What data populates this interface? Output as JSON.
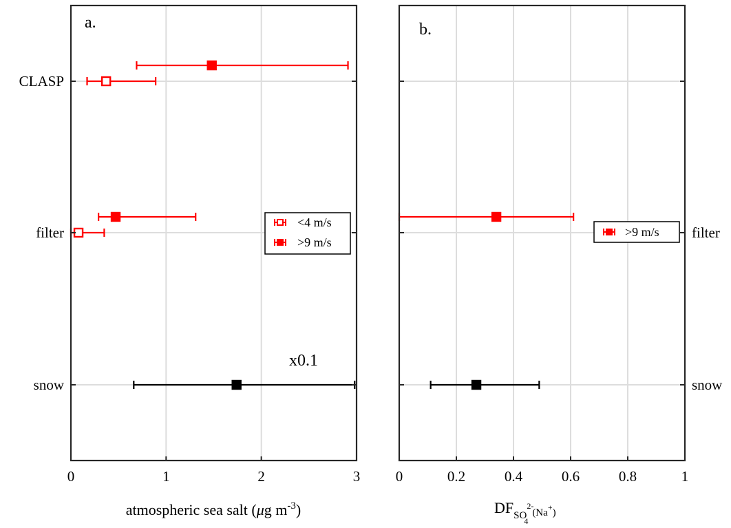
{
  "chart_data": [
    {
      "type": "errorbar",
      "panel_label": "a.",
      "xlabel": "atmospheric sea salt (μg m⁻³)",
      "xlabel_parts": {
        "main": "atmospheric sea salt (",
        "mu": "μ",
        "rest": "g m",
        "sup": "-3",
        "close": ")"
      },
      "xlim": [
        0,
        3
      ],
      "xticks": [
        0,
        1,
        2,
        3
      ],
      "xtick_labels": [
        "0",
        "1",
        "2",
        "3"
      ],
      "categories": [
        "CLASP",
        "filter",
        "snow"
      ],
      "grid": true,
      "annotation": "x0.1",
      "legend": {
        "position": "right-middle",
        "entries": [
          "<4 m/s",
          ">9 m/s"
        ]
      },
      "points": [
        {
          "category": "CLASP",
          "series": ">9 m/s",
          "value": 1.48,
          "low": 0.69,
          "high": 2.91,
          "color": "#ff0000",
          "filled": true
        },
        {
          "category": "CLASP",
          "series": "<4 m/s",
          "value": 0.37,
          "low": 0.17,
          "high": 0.89,
          "color": "#ff0000",
          "filled": false
        },
        {
          "category": "filter",
          "series": ">9 m/s",
          "value": 0.47,
          "low": 0.29,
          "high": 1.31,
          "color": "#ff0000",
          "filled": true
        },
        {
          "category": "filter",
          "series": "<4 m/s",
          "value": 0.08,
          "low": 0.0,
          "high": 0.35,
          "color": "#ff0000",
          "filled": false
        },
        {
          "category": "snow",
          "series": "",
          "value": 1.74,
          "low": 0.66,
          "high": 2.98,
          "color": "#000000",
          "filled": true
        }
      ]
    },
    {
      "type": "errorbar",
      "panel_label": "b.",
      "xlabel": "DF SO₄²⁻(Na⁺)",
      "xlabel_parts": {
        "df": "DF",
        "so": "SO",
        "sub4": "4",
        "sup2": "2-",
        "na": "(Na",
        "plus": "+",
        "close": ")"
      },
      "xlim": [
        0,
        1
      ],
      "xticks": [
        0,
        0.2,
        0.4,
        0.6,
        0.8,
        1
      ],
      "xtick_labels": [
        "0",
        "0.2",
        "0.4",
        "0.6",
        "0.8",
        "1"
      ],
      "categories": [
        "filter",
        "snow"
      ],
      "grid": true,
      "legend": {
        "position": "right-middle",
        "entries": [
          ">9 m/s"
        ]
      },
      "points": [
        {
          "category": "filter",
          "series": ">9 m/s",
          "value": 0.34,
          "low": 0.0,
          "high": 0.61,
          "color": "#ff0000",
          "filled": true
        },
        {
          "category": "snow",
          "series": "",
          "value": 0.27,
          "low": 0.11,
          "high": 0.49,
          "color": "#000000",
          "filled": true
        }
      ]
    }
  ],
  "colors": {
    "red": "#ff0000",
    "black": "#000000",
    "grid": "#dddddd"
  }
}
